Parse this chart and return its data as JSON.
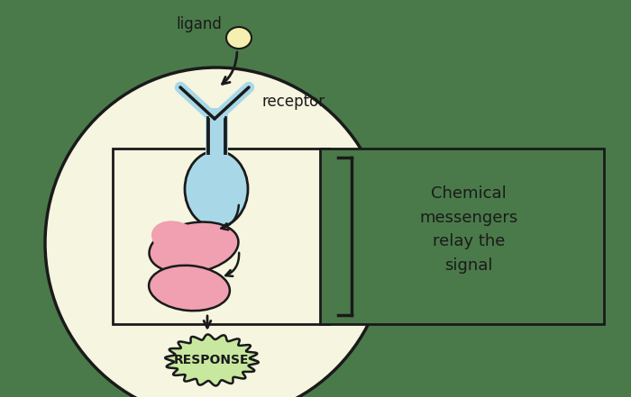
{
  "bg_color": "#4a7a4a",
  "cell_color": "#f5f5e0",
  "cell_edge_color": "#1a1a1a",
  "box_color": "#f5f5e0",
  "box_edge_color": "#1a1a1a",
  "outer_box_color": "#4a7a4a",
  "outer_box_edge_color": "#1a1a1a",
  "ligand_color": "#f5f0b0",
  "ligand_edge_color": "#1a1a1a",
  "receptor_color": "#a8d8e8",
  "receptor_edge_color": "#1a1a1a",
  "messenger_color": "#f0a0b0",
  "messenger_edge_color": "#1a1a1a",
  "response_color": "#c8e8a0",
  "response_edge_color": "#1a1a1a",
  "arrow_color": "#1a1a1a",
  "text_color": "#1a1a1a",
  "ligand_label": "ligand",
  "receptor_label": "receptor",
  "response_label": "RESPONSE",
  "box_label": "Chemical\nmessengers\nrelay the\nsignal"
}
